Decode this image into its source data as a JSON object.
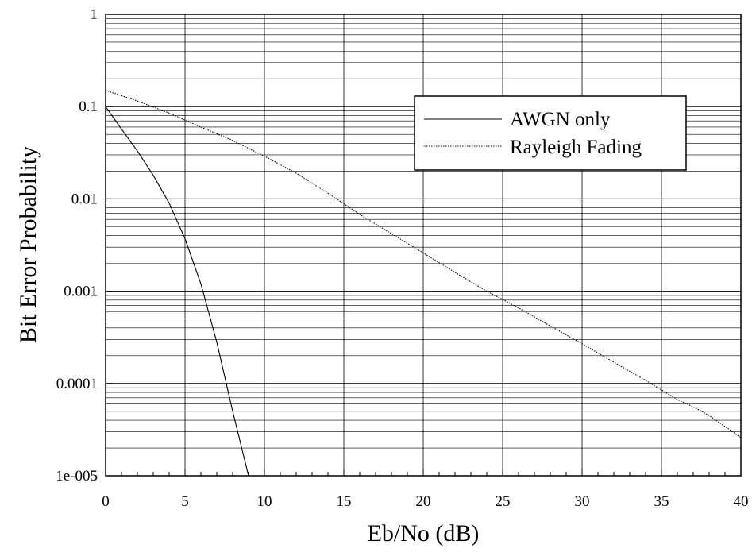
{
  "chart_data": {
    "type": "line",
    "title": "",
    "xlabel": "Eb/No (dB)",
    "ylabel": "Bit Error Probability",
    "xlim": [
      0,
      40
    ],
    "ylim": [
      1e-05,
      1
    ],
    "y_scale": "log",
    "grid": true,
    "x_ticks": [
      "0",
      "5",
      "10",
      "15",
      "20",
      "25",
      "30",
      "35",
      "40"
    ],
    "y_ticks": [
      "1",
      "0.1",
      "0.01",
      "0.001",
      "0.0001",
      "1e-005"
    ],
    "legend_position": "top-right",
    "series": [
      {
        "name": "AWGN only",
        "line_style": "solid",
        "x": [
          0,
          1,
          2,
          3,
          4,
          5,
          6,
          7,
          8,
          9
        ],
        "y": [
          0.1,
          0.057,
          0.033,
          0.018,
          0.009,
          0.0037,
          0.0012,
          0.00028,
          5e-05,
          1e-05
        ]
      },
      {
        "name": "Rayleigh Fading",
        "line_style": "dotted",
        "x": [
          0,
          2,
          4,
          6,
          8,
          10,
          12,
          14,
          16,
          18,
          20,
          22,
          24,
          26,
          28,
          30,
          32,
          34,
          36,
          37,
          38,
          40
        ],
        "y": [
          0.15,
          0.115,
          0.085,
          0.06,
          0.043,
          0.029,
          0.019,
          0.0115,
          0.0068,
          0.0042,
          0.0026,
          0.0016,
          0.001,
          0.00066,
          0.00042,
          0.00027,
          0.00017,
          0.000108,
          6.7e-05,
          5.6e-05,
          4.5e-05,
          2.6e-05
        ]
      }
    ]
  },
  "colors": {
    "background": "#ffffff",
    "line": "#000000",
    "grid": "#000000"
  }
}
